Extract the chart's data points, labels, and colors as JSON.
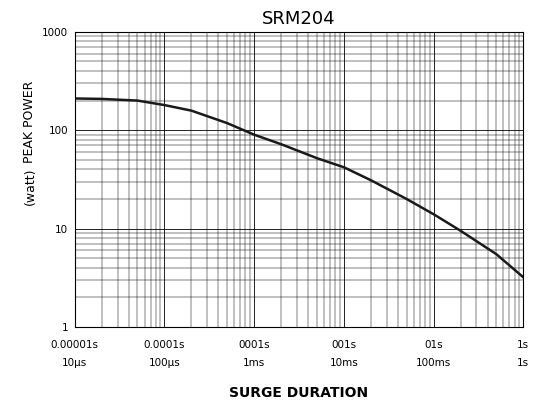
{
  "title": "SRM204",
  "xlabel": "SURGE DURATION",
  "ylabel": "PEAK POWER\n(watt)",
  "xlim": [
    1e-05,
    1.0
  ],
  "ylim": [
    1,
    1000
  ],
  "curve_x": [
    1e-05,
    2e-05,
    5e-05,
    0.0001,
    0.0002,
    0.0005,
    0.001,
    0.002,
    0.005,
    0.01,
    0.02,
    0.05,
    0.1,
    0.2,
    0.5,
    1.0
  ],
  "curve_y": [
    210,
    208,
    200,
    180,
    158,
    118,
    90,
    72,
    52,
    42,
    31,
    20,
    14,
    9.5,
    5.5,
    3.2
  ],
  "xtick_positions": [
    1e-05,
    0.0001,
    0.001,
    0.01,
    0.1,
    1.0
  ],
  "xtick_labels_top": [
    "0.00001s",
    "0.0001s",
    "0001s",
    "001s",
    "01s",
    "1s"
  ],
  "xtick_labels_bot": [
    "10μs",
    "100μs",
    "1ms",
    "10ms",
    "100ms",
    "1s"
  ],
  "ytick_positions": [
    1,
    10,
    100,
    1000
  ],
  "ytick_labels": [
    "1",
    "10",
    "100",
    "1000"
  ],
  "line_color": "#1a1a1a",
  "line_width": 1.8,
  "bg_color": "#ffffff",
  "grid_color": "#000000",
  "title_fontsize": 13,
  "label_fontsize": 9,
  "tick_fontsize": 7.5,
  "ylabel_fontsize": 8
}
